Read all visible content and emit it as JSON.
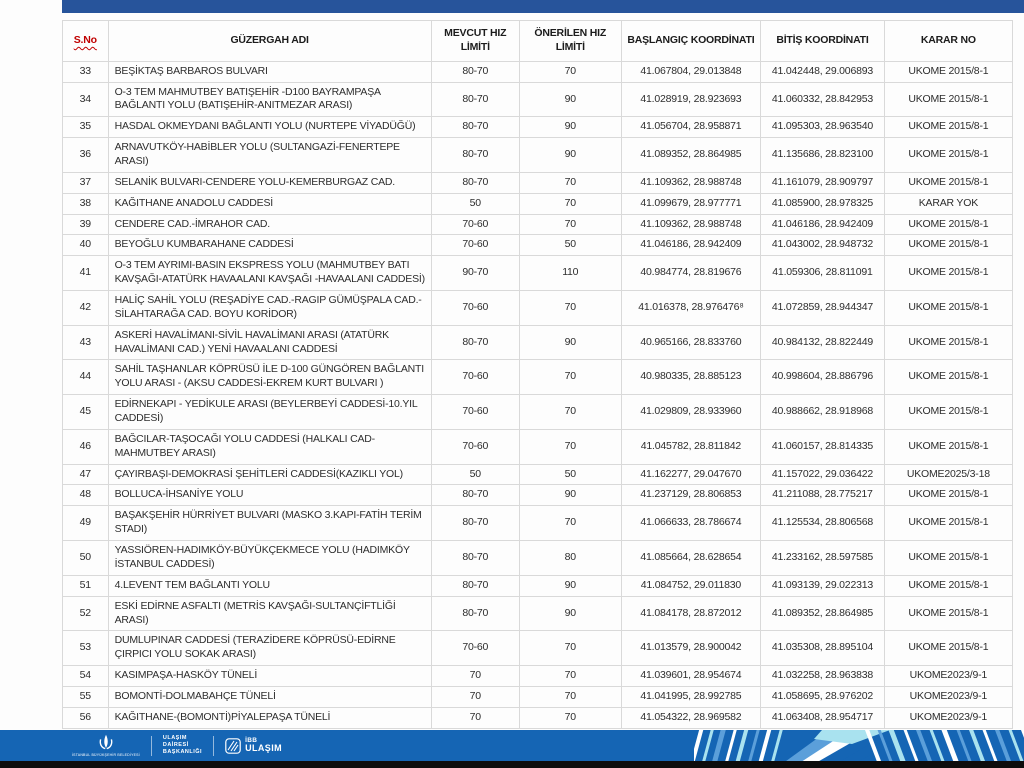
{
  "top_bar_color": "#27549b",
  "table": {
    "columns": [
      {
        "key": "sno",
        "label": "S.No"
      },
      {
        "key": "route",
        "label": "GÜZERGAH ADI"
      },
      {
        "key": "current",
        "label": "MEVCUT HIZ LİMİTİ"
      },
      {
        "key": "proposed",
        "label": "ÖNERİLEN HIZ LİMİTİ"
      },
      {
        "key": "start",
        "label": "BAŞLANGIÇ KOORDİNATI"
      },
      {
        "key": "end",
        "label": "BİTİŞ KOORDİNATI"
      },
      {
        "key": "decision",
        "label": "KARAR NO"
      }
    ],
    "rows": [
      {
        "sno": "33",
        "route": "BEŞİKTAŞ BARBAROS BULVARI",
        "current": "80-70",
        "proposed": "70",
        "start": "41.067804, 29.013848",
        "end": "41.042448, 29.006893",
        "decision": "UKOME 2015/8-1"
      },
      {
        "sno": "34",
        "route": "O-3 TEM MAHMUTBEY BATIŞEHİR -D100 BAYRAMPAŞA BAĞLANTI YOLU (BATIŞEHİR-ANITMEZAR ARASI)",
        "current": "80-70",
        "proposed": "90",
        "start": "41.028919, 28.923693",
        "end": "41.060332, 28.842953",
        "decision": "UKOME 2015/8-1"
      },
      {
        "sno": "35",
        "route": "HASDAL OKMEYDANI BAĞLANTI YOLU (NURTEPE VİYADÜĞÜ)",
        "current": "80-70",
        "proposed": "90",
        "start": "41.056704, 28.958871",
        "end": "41.095303, 28.963540",
        "decision": "UKOME 2015/8-1"
      },
      {
        "sno": "36",
        "route": "ARNAVUTKÖY-HABİBLER YOLU (SULTANGAZİ-FENERTEPE ARASI)",
        "current": "80-70",
        "proposed": "90",
        "start": "41.089352, 28.864985",
        "end": "41.135686, 28.823100",
        "decision": "UKOME 2015/8-1"
      },
      {
        "sno": "37",
        "route": "SELANİK BULVARI-CENDERE YOLU-KEMERBURGAZ CAD.",
        "current": "80-70",
        "proposed": "70",
        "start": "41.109362, 28.988748",
        "end": "41.161079, 28.909797",
        "decision": "UKOME 2015/8-1"
      },
      {
        "sno": "38",
        "route": "KAĞITHANE ANADOLU CADDESİ",
        "current": "50",
        "proposed": "70",
        "start": "41.099679, 28.977771",
        "end": "41.085900, 28.978325",
        "decision": "KARAR YOK"
      },
      {
        "sno": "39",
        "route": "CENDERE CAD.-İMRAHOR CAD.",
        "current": "70-60",
        "proposed": "70",
        "start": "41.109362, 28.988748",
        "end": "41.046186, 28.942409",
        "decision": "UKOME 2015/8-1"
      },
      {
        "sno": "40",
        "route": "BEYOĞLU KUMBARAHANE CADDESİ",
        "current": "70-60",
        "proposed": "50",
        "start": "41.046186, 28.942409",
        "end": "41.043002, 28.948732",
        "decision": "UKOME 2015/8-1"
      },
      {
        "sno": "41",
        "route": "O-3 TEM AYRIMI-BASIN EKSPRESS YOLU (MAHMUTBEY BATI KAVŞAĞI-ATATÜRK HAVAALANI KAVŞAĞI -HAVAALANI CADDESİ)",
        "current": "90-70",
        "proposed": "110",
        "start": "40.984774, 28.819676",
        "end": "41.059306, 28.811091",
        "decision": "UKOME 2015/8-1"
      },
      {
        "sno": "42",
        "route": "HALİÇ SAHİL YOLU (REŞADİYE CAD.-RAGIP GÜMÜŞPALA CAD.-SİLAHTARAĞA CAD. BOYU KORİDOR)",
        "current": "70-60",
        "proposed": "70",
        "start": "41.016378, 28.976476⁸",
        "end": "41.072859, 28.944347",
        "decision": "UKOME 2015/8-1"
      },
      {
        "sno": "43",
        "route": "ASKERİ HAVALİMANI-SİVİL HAVALİMANI ARASI (ATATÜRK HAVALİMANI CAD.) YENİ HAVAALANI CADDESİ",
        "current": "80-70",
        "proposed": "90",
        "start": "40.965166, 28.833760",
        "end": "40.984132, 28.822449",
        "decision": "UKOME 2015/8-1"
      },
      {
        "sno": "44",
        "route": "SAHİL TAŞHANLAR KÖPRÜSÜ İLE D-100 GÜNGÖREN BAĞLANTI YOLU ARASI - (AKSU CADDESİ-EKREM KURT BULVARI )",
        "current": "70-60",
        "proposed": "70",
        "start": "40.980335, 28.885123",
        "end": "40.998604, 28.886796",
        "decision": "UKOME 2015/8-1"
      },
      {
        "sno": "45",
        "route": "EDİRNEKAPI - YEDİKULE ARASI (BEYLERBEYİ CADDESİ-10.YIL CADDESİ)",
        "current": "70-60",
        "proposed": "70",
        "start": "41.029809, 28.933960",
        "end": "40.988662, 28.918968",
        "decision": "UKOME 2015/8-1"
      },
      {
        "sno": "46",
        "route": "BAĞCILAR-TAŞOCAĞI YOLU CADDESİ (HALKALI CAD-MAHMUTBEY ARASI)",
        "current": "70-60",
        "proposed": "70",
        "start": "41.045782, 28.811842",
        "end": "41.060157, 28.814335",
        "decision": "UKOME 2015/8-1"
      },
      {
        "sno": "47",
        "route": "ÇAYIRBAŞI-DEMOKRASİ ŞEHİTLERİ CADDESİ(KAZIKLI YOL)",
        "current": "50",
        "proposed": "50",
        "start": "41.162277, 29.047670",
        "end": "41.157022, 29.036422",
        "decision": "UKOME2025/3-18"
      },
      {
        "sno": "48",
        "route": "BOLLUCA-İHSANİYE YOLU",
        "current": "80-70",
        "proposed": "90",
        "start": "41.237129, 28.806853",
        "end": "41.211088, 28.775217",
        "decision": "UKOME 2015/8-1"
      },
      {
        "sno": "49",
        "route": "BAŞAKŞEHİR HÜRRİYET BULVARI (MASKO 3.KAPI-FATİH TERİM STADI)",
        "current": "80-70",
        "proposed": "70",
        "start": "41.066633, 28.786674",
        "end": "41.125534, 28.806568",
        "decision": "UKOME 2015/8-1"
      },
      {
        "sno": "50",
        "route": "YASSIÖREN-HADIMKÖY-BÜYÜKÇEKMECE YOLU (HADIMKÖY İSTANBUL CADDESİ)",
        "current": "80-70",
        "proposed": "80",
        "start": "41.085664, 28.628654",
        "end": "41.233162, 28.597585",
        "decision": "UKOME 2015/8-1"
      },
      {
        "sno": "51",
        "route": "4.LEVENT TEM BAĞLANTI YOLU",
        "current": "80-70",
        "proposed": "90",
        "start": "41.084752, 29.011830",
        "end": "41.093139, 29.022313",
        "decision": "UKOME 2015/8-1"
      },
      {
        "sno": "52",
        "route": "ESKİ EDİRNE ASFALTI (METRİS KAVŞAĞI-SULTANÇİFTLİĞİ ARASI)",
        "current": "80-70",
        "proposed": "90",
        "start": "41.084178, 28.872012",
        "end": "41.089352, 28.864985",
        "decision": "UKOME 2015/8-1"
      },
      {
        "sno": "53",
        "route": "DUMLUPINAR CADDESİ  (TERAZİDERE KÖPRÜSÜ-EDİRNE ÇIRPICI YOLU SOKAK ARASI)",
        "current": "70-60",
        "proposed": "70",
        "start": "41.013579, 28.900042",
        "end": "41.035308, 28.895104",
        "decision": "UKOME 2015/8-1"
      },
      {
        "sno": "54",
        "route": "KASIMPAŞA-HASKÖY TÜNELİ",
        "current": "70",
        "proposed": "70",
        "start": "41.039601, 28.954674",
        "end": "41.032258, 28.963838",
        "decision": "UKOME2023/9-1"
      },
      {
        "sno": "55",
        "route": "BOMONTİ-DOLMABAHÇE TÜNELİ",
        "current": "70",
        "proposed": "70",
        "start": "41.041995, 28.992785",
        "end": "41.058695, 28.976202",
        "decision": "UKOME2023/9-1"
      },
      {
        "sno": "56",
        "route": "KAĞITHANE-(BOMONTİ)PİYALEPAŞA TÜNELİ",
        "current": "70",
        "proposed": "70",
        "start": "41.054322, 28.969582",
        "end": "41.063408, 28.954717",
        "decision": "UKOME2023/9-1"
      }
    ]
  },
  "footer": {
    "bar_color": "#1565b4",
    "emblem_caption": "İSTANBUL BÜYÜKŞEHİR BELEDİYESİ",
    "department_line1": "ULAŞIM",
    "department_line2": "DAİRESİ",
    "department_line3": "BAŞKANLIĞI",
    "brand_line1": "İBB",
    "brand_line2": "ULAŞIM",
    "pattern_colors": {
      "white": "#ffffff",
      "cyan": "#a9e2ef",
      "sky": "#5b9fda",
      "base": "#1565b4"
    }
  },
  "header_accent_color": "#c00000"
}
